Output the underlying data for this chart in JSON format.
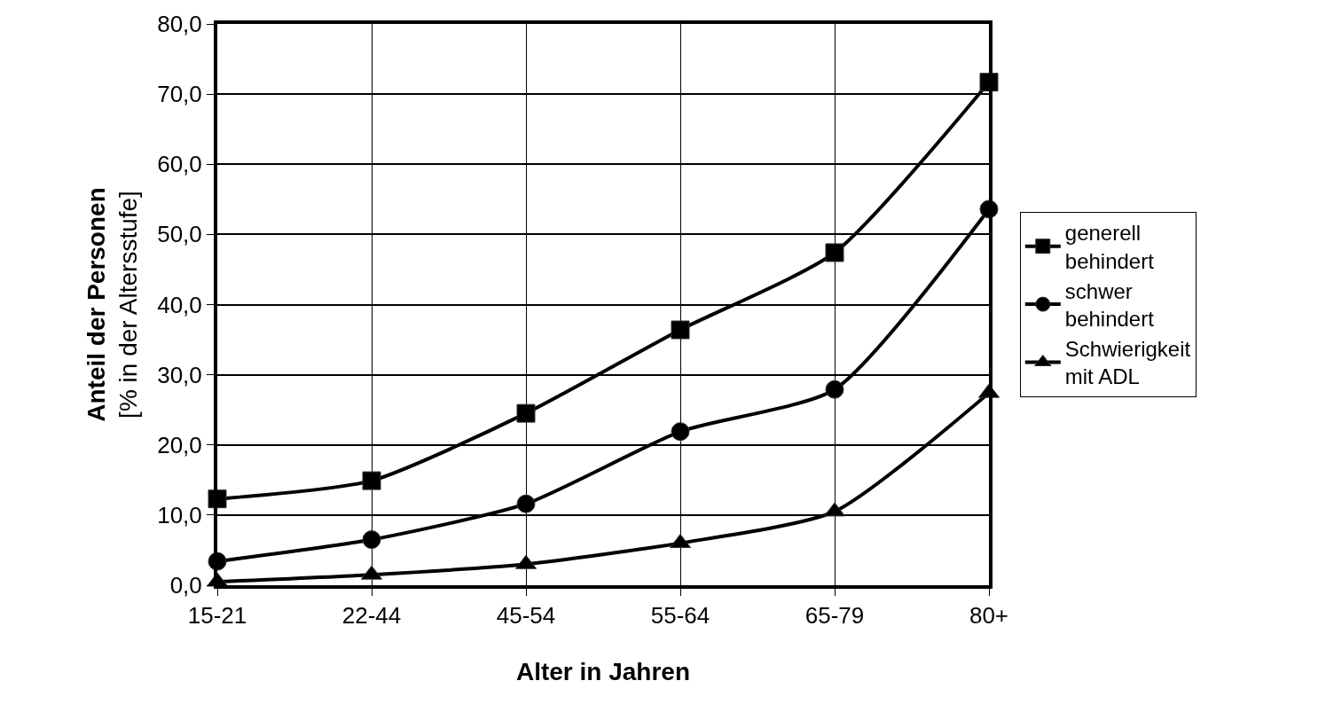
{
  "chart_data": {
    "type": "line",
    "xlabel": "Alter in Jahren",
    "ylabel": "Anteil der Personen\n[% in der Altersstufe]",
    "categories": [
      "15-21",
      "22-44",
      "45-54",
      "55-64",
      "65-79",
      "80+"
    ],
    "series": [
      {
        "name": "generell\nbehindert",
        "color": "#000000",
        "marker": "square",
        "values": [
          12.3,
          14.9,
          24.5,
          36.4,
          47.4,
          71.7
        ]
      },
      {
        "name": "schwer\nbehindert",
        "color": "#000000",
        "marker": "circle",
        "values": [
          3.4,
          6.5,
          11.6,
          21.9,
          27.9,
          53.6
        ]
      },
      {
        "name": "Schwierigkeit\nmit ADL",
        "color": "#000000",
        "marker": "triangle",
        "values": [
          0.5,
          1.5,
          3.0,
          6.0,
          10.5,
          27.4
        ]
      }
    ],
    "ylim": [
      0,
      80
    ],
    "yticks": [
      {
        "value": 0,
        "label": "0,0"
      },
      {
        "value": 10,
        "label": "10,0"
      },
      {
        "value": 20,
        "label": "20,0"
      },
      {
        "value": 30,
        "label": "30,0"
      },
      {
        "value": 40,
        "label": "40,0"
      },
      {
        "value": 50,
        "label": "50,0"
      },
      {
        "value": 60,
        "label": "60,0"
      },
      {
        "value": 70,
        "label": "70,0"
      },
      {
        "value": 80,
        "label": "80,0"
      }
    ],
    "grid": true,
    "legend": "right",
    "line_style": "solid"
  }
}
